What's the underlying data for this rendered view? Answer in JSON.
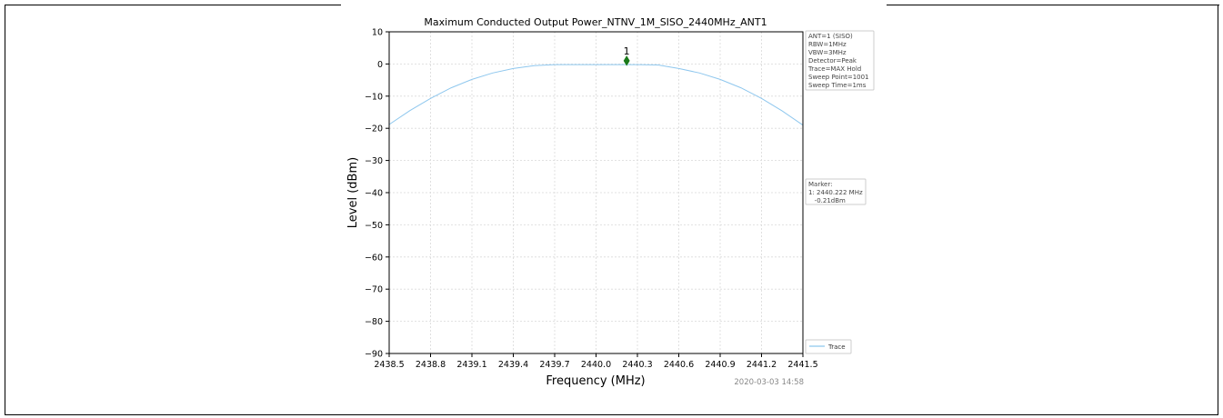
{
  "chart_data": {
    "type": "line",
    "title": "Maximum Conducted Output Power_NTNV_1M_SISO_2440MHz_ANT1",
    "xlabel": "Frequency (MHz)",
    "ylabel": "Level (dBm)",
    "xlim": [
      2438.5,
      2441.5
    ],
    "ylim": [
      -90,
      10
    ],
    "x_ticks": [
      2438.5,
      2438.8,
      2439.1,
      2439.4,
      2439.7,
      2440.0,
      2440.3,
      2440.6,
      2440.9,
      2441.2,
      2441.5
    ],
    "x_tick_labels": [
      "2438.5",
      "2438.8",
      "2439.1",
      "2439.4",
      "2439.7",
      "2440.0",
      "2440.3",
      "2440.6",
      "2440.9",
      "2441.2",
      "2441.5"
    ],
    "y_ticks": [
      10,
      0,
      -10,
      -20,
      -30,
      -40,
      -50,
      -60,
      -70,
      -80,
      -90
    ],
    "y_tick_labels": [
      "10",
      "0",
      "−10",
      "−20",
      "−30",
      "−40",
      "−50",
      "−60",
      "−70",
      "−80",
      "−90"
    ],
    "grid": true,
    "series": [
      {
        "name": "Trace",
        "color": "#8ec7ee",
        "x": [
          2438.5,
          2438.65,
          2438.8,
          2438.95,
          2439.1,
          2439.25,
          2439.4,
          2439.55,
          2439.7,
          2439.85,
          2440.0,
          2440.15,
          2440.3,
          2440.45,
          2440.6,
          2440.75,
          2440.9,
          2441.05,
          2441.2,
          2441.35,
          2441.5
        ],
        "y": [
          -18.8,
          -14.5,
          -10.7,
          -7.4,
          -4.8,
          -2.8,
          -1.4,
          -0.5,
          -0.2,
          -0.2,
          -0.2,
          -0.2,
          -0.2,
          -0.3,
          -1.4,
          -2.8,
          -4.8,
          -7.4,
          -10.7,
          -14.6,
          -19.0
        ]
      }
    ],
    "marker": {
      "label": "1",
      "x": 2440.222,
      "y": 1.0,
      "color": "#1a7a1a"
    },
    "info_box": [
      "ANT=1 (SISO)",
      "RBW=1MHz",
      "VBW=3MHz",
      "Detector=Peak",
      "Trace=MAX Hold",
      "Sweep Point=1001",
      "Sweep Time=1ms"
    ],
    "marker_box": [
      "Marker:",
      "1: 2440.222 MHz",
      "   -0.21dBm"
    ],
    "legend": {
      "placement": "bottom-right-outside",
      "entries": [
        "Trace"
      ]
    },
    "timestamp": "2020-03-03 14:58"
  }
}
